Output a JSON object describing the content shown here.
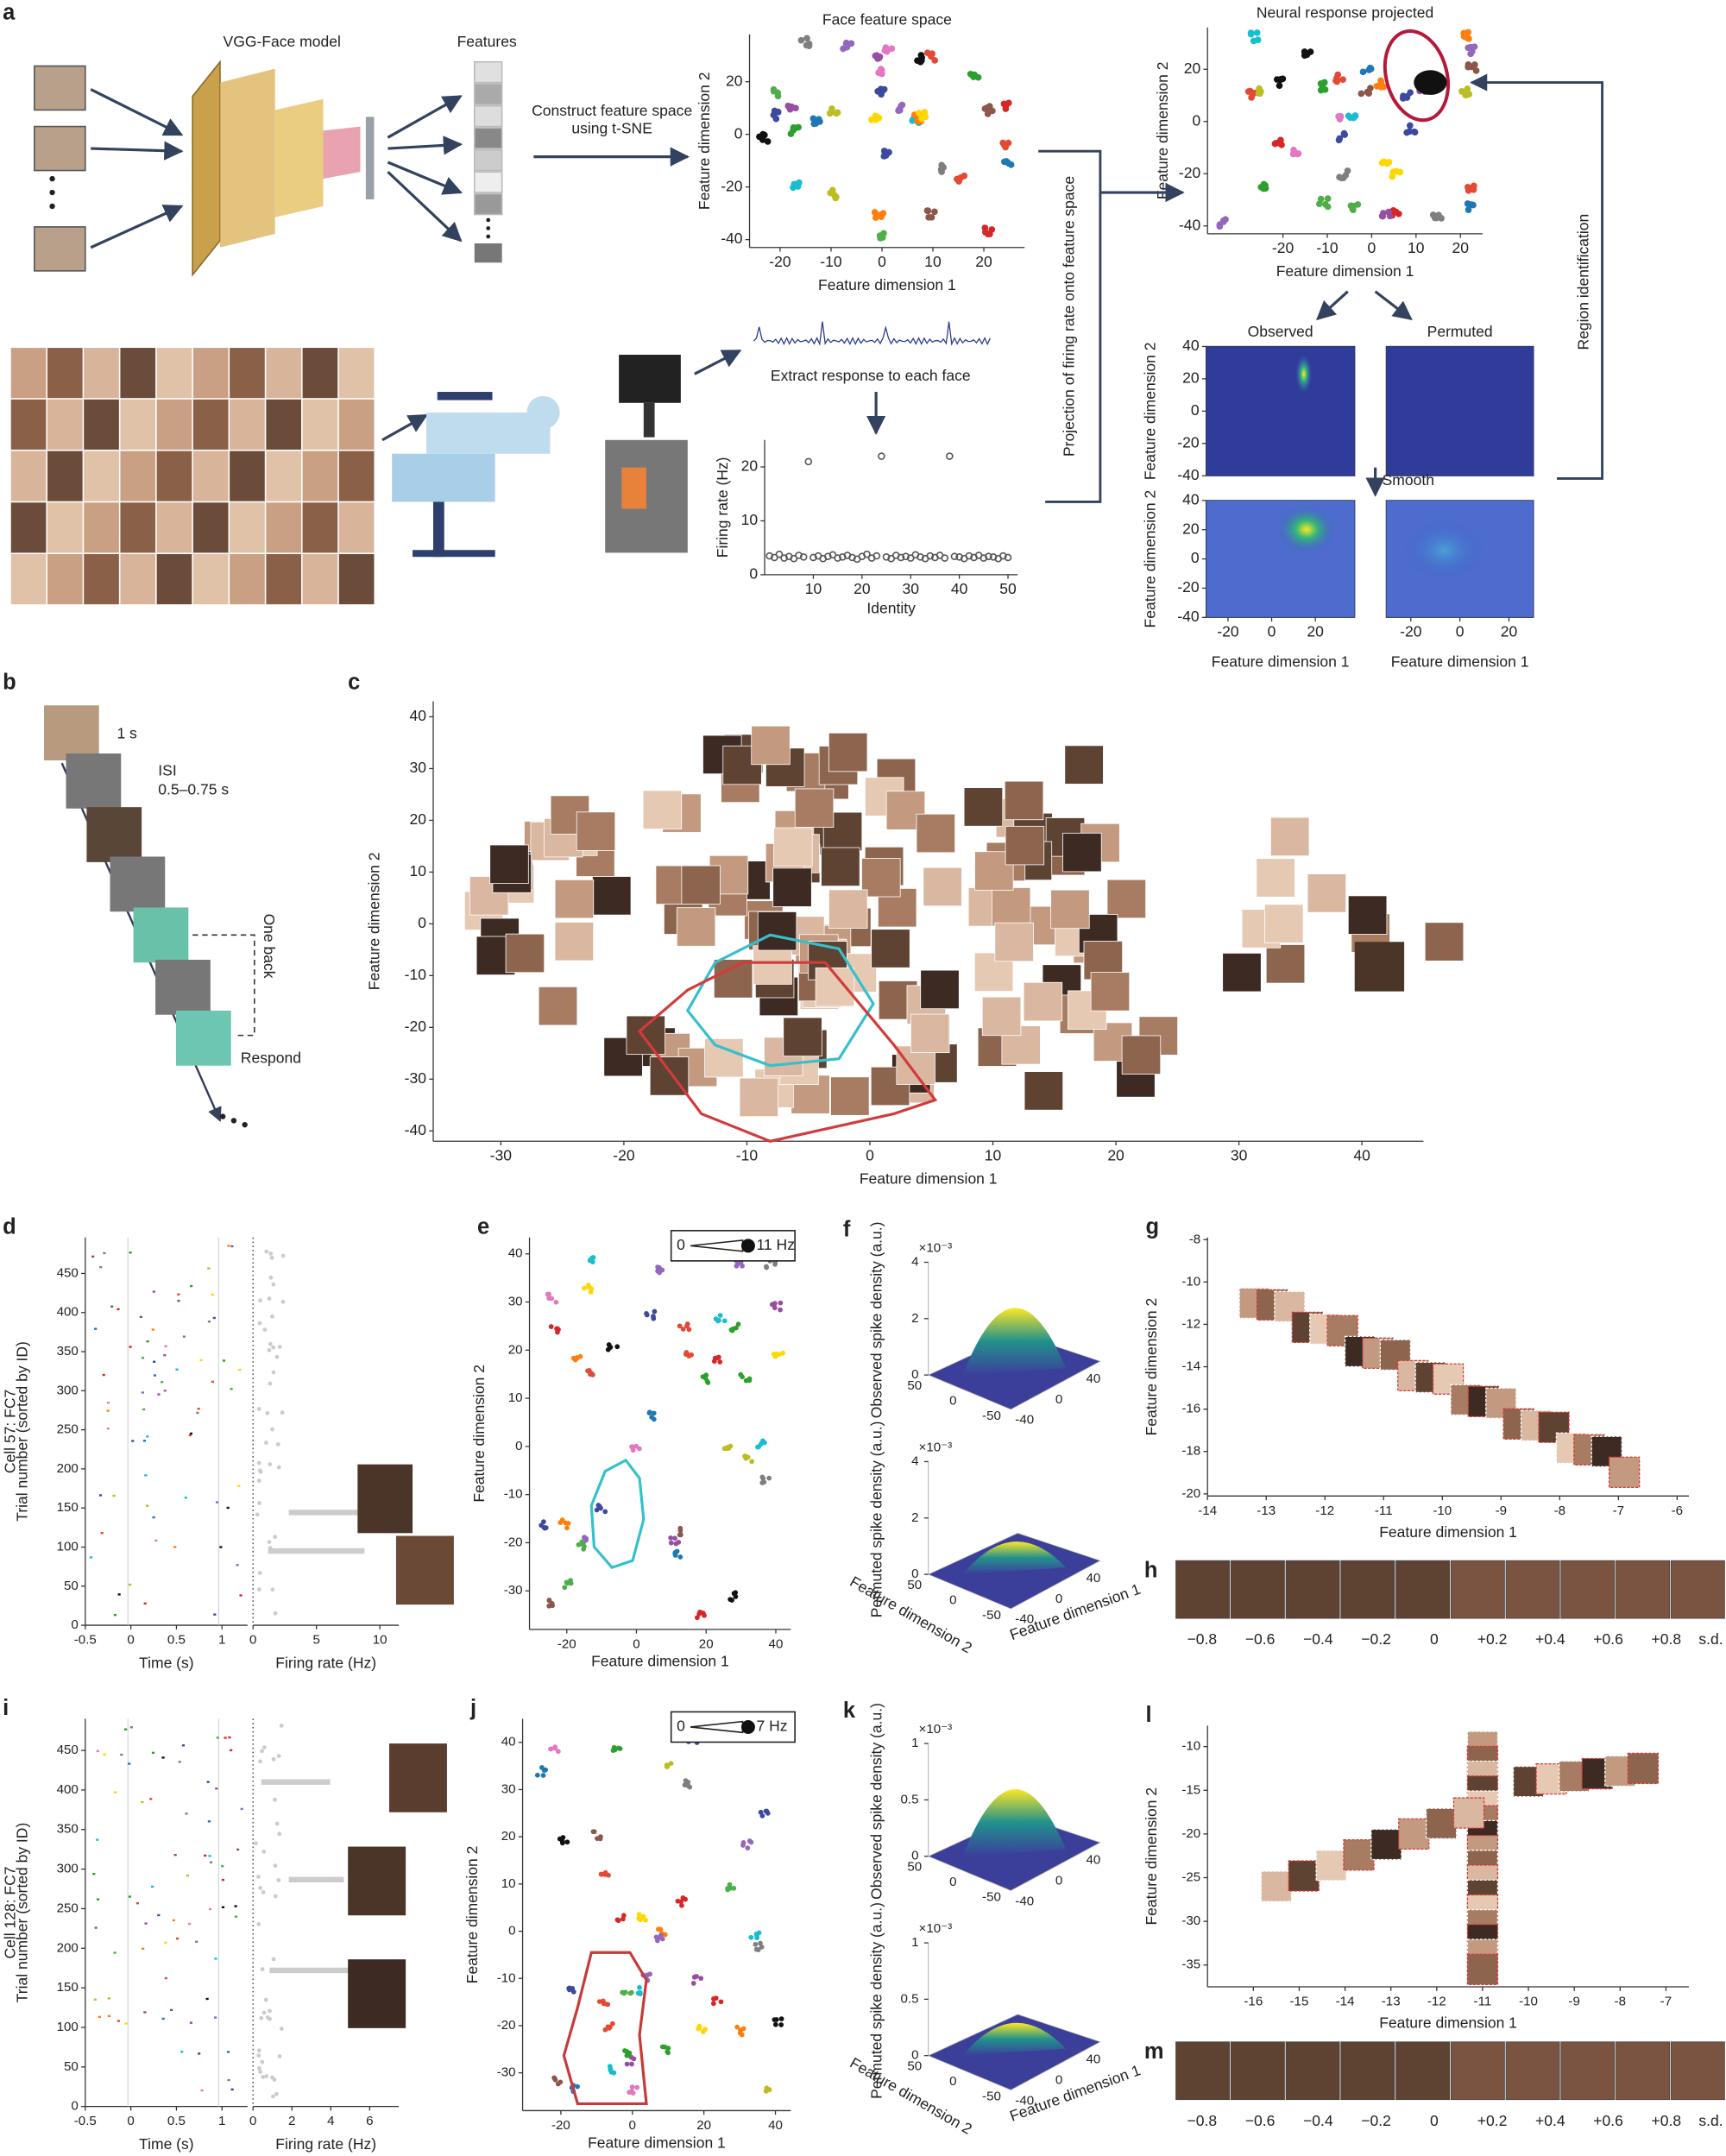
{
  "a": {
    "label": "a",
    "vgg_title": "VGG-Face model",
    "features_title": "Features",
    "construct_text": "Construct feature space using t-SNE",
    "extract_text": "Extract response to each face",
    "projection_text": "Projection of firing rate onto feature space",
    "region_text": "Region identification",
    "smooth_text": "Smooth",
    "feature_space": {
      "title": "Face feature space",
      "xlabel": "Feature dimension 1",
      "ylabel": "Feature dimension 2",
      "xlim": [
        -26,
        28
      ],
      "ylim": [
        -43,
        38
      ],
      "xticks": [
        -20,
        -10,
        0,
        10,
        20
      ],
      "yticks": [
        -40,
        -20,
        0,
        20
      ]
    },
    "neural_space": {
      "title": "Neural response projected",
      "xlabel": "Feature dimension 1",
      "ylabel": "Feature dimension 2",
      "xlim": [
        -37,
        25
      ],
      "ylim": [
        -43,
        36
      ],
      "xticks": [
        -20,
        -10,
        0,
        10,
        20
      ],
      "yticks": [
        -40,
        -20,
        0,
        20
      ]
    },
    "firing": {
      "xlabel": "Identity",
      "ylabel": "Firing rate (Hz)",
      "xlim": [
        0,
        52
      ],
      "ylim": [
        0,
        25
      ],
      "xticks": [
        10,
        20,
        30,
        40,
        50
      ],
      "yticks": [
        0,
        10,
        20
      ],
      "values": [
        3.5,
        3.2,
        3.8,
        3.1,
        3.4,
        3.0,
        3.6,
        3.3,
        21,
        3.2,
        3.5,
        3.0,
        3.4,
        3.7,
        3.1,
        3.3,
        3.6,
        3.2,
        2.9,
        3.4,
        3.8,
        3.1,
        3.5,
        22,
        3.3,
        3.0,
        3.6,
        3.2,
        3.4,
        3.1,
        3.7,
        3.3,
        3.0,
        3.5,
        3.2,
        3.6,
        3.1,
        22,
        3.4,
        3.3,
        3.0,
        3.5,
        3.2,
        3.6,
        3.1,
        3.4,
        3.3,
        3.0,
        3.5,
        3.2
      ],
      "color": "#555555"
    },
    "observed": {
      "title": "Observed",
      "ylabel": "Feature dimension 2",
      "xlim": [
        -35,
        35
      ],
      "ylim": [
        -40,
        40
      ],
      "yticks": [
        -40,
        -20,
        0,
        20,
        40
      ]
    },
    "permuted": {
      "title": "Permuted",
      "xlim": [
        -35,
        35
      ],
      "ylim": [
        -40,
        40
      ]
    },
    "observed_smooth": {
      "xlabel": "Feature dimension 1",
      "ylabel": "Feature dimension 2",
      "xlim": [
        -30,
        38
      ],
      "ylim": [
        -40,
        40
      ],
      "xticks": [
        -20,
        0,
        20
      ],
      "yticks": [
        -40,
        -20,
        0,
        20,
        40
      ]
    },
    "permuted_smooth": {
      "xlabel": "Feature dimension 1",
      "xlim": [
        -30,
        30
      ],
      "ylim": [
        -40,
        40
      ],
      "xticks": [
        -20,
        0,
        20
      ]
    }
  },
  "b": {
    "label": "b",
    "duration": "1 s",
    "isi": "ISI",
    "isi_range": "0.5–0.75 s",
    "one_back": "One back",
    "respond": "Respond"
  },
  "c": {
    "label": "c",
    "xlabel": "Feature dimension 1",
    "ylabel": "Feature dimension 2",
    "xlim": [
      -35.5,
      45
    ],
    "ylim": [
      -42,
      43
    ],
    "xticks": [
      -30,
      -20,
      -10,
      0,
      10,
      20,
      30,
      40
    ],
    "yticks": [
      -40,
      -30,
      -20,
      -10,
      0,
      10,
      20,
      30,
      40
    ]
  },
  "d": {
    "label": "d",
    "cell": "Cell 57: FC7",
    "raster": {
      "xlabel": "Time (s)",
      "ylabel": "Trial number (sorted by ID)",
      "xlim": [
        -0.5,
        1.28
      ],
      "ylim": [
        0,
        496
      ],
      "xticks": [
        -0.5,
        0,
        0.5,
        1
      ],
      "yticks": [
        0,
        50,
        100,
        150,
        200,
        250,
        300,
        350,
        400,
        450
      ]
    },
    "rate": {
      "xlabel": "Firing rate (Hz)",
      "xlim": [
        0,
        11.5
      ],
      "ylim": [
        0,
        496
      ],
      "xticks": [
        0,
        5,
        10
      ]
    }
  },
  "e": {
    "label": "e",
    "legend_min": "0",
    "legend_max": "11 Hz",
    "xlabel": "Feature dimension 1",
    "ylabel": "Feature dimension 2",
    "xlim": [
      -30.7,
      44.3
    ],
    "ylim": [
      -38,
      43.4
    ],
    "xticks": [
      -20,
      0,
      20,
      40
    ],
    "yticks": [
      -30,
      -20,
      -10,
      0,
      10,
      20,
      30,
      40
    ]
  },
  "f": {
    "label": "f",
    "observed_label": "Observed spike density (a.u.)",
    "permuted_label": "Permuted spike density (a.u.)",
    "scale": "×10⁻³",
    "zticks": [
      0,
      2,
      4
    ],
    "dim2_ticks": [
      50,
      0,
      -50
    ],
    "dim1_ticks": [
      -40,
      0,
      40
    ],
    "dim2_label": "Feature dimension 2",
    "dim1_label": "Feature dimension 1"
  },
  "g": {
    "label": "g",
    "xlabel": "Feature dimension 1",
    "ylabel": "Feature dimension 2",
    "xlim": [
      -14,
      -5.8
    ],
    "ylim": [
      -20.1,
      -7.9
    ],
    "xticks": [
      -14,
      -13,
      -12,
      -11,
      -10,
      -9,
      -8,
      -7,
      -6
    ],
    "yticks": [
      -20,
      -18,
      -16,
      -14,
      -12,
      -10,
      -8
    ]
  },
  "h": {
    "label": "h",
    "steps": [
      "−0.8",
      "−0.6",
      "−0.4",
      "−0.2",
      "0",
      "+0.2",
      "+0.4",
      "+0.6",
      "+0.8"
    ],
    "unit": "s.d."
  },
  "i": {
    "label": "i",
    "cell": "Cell 128: FC7",
    "raster": {
      "xlabel": "Time (s)",
      "ylabel": "Trial number (sorted by ID)",
      "xlim": [
        -0.5,
        1.28
      ],
      "ylim": [
        0,
        490
      ],
      "xticks": [
        -0.5,
        0,
        0.5,
        1
      ],
      "yticks": [
        0,
        50,
        100,
        150,
        200,
        250,
        300,
        350,
        400,
        450
      ]
    },
    "rate": {
      "xlabel": "Firing rate (Hz)",
      "xlim": [
        0,
        7.5
      ],
      "ylim": [
        0,
        490
      ],
      "xticks": [
        0,
        2,
        4,
        6
      ]
    }
  },
  "j": {
    "label": "j",
    "legend_min": "0",
    "legend_max": "7 Hz",
    "xlabel": "Feature dimension 1",
    "ylabel": "Feature dimension 2",
    "xlim": [
      -30.7,
      44.3
    ],
    "ylim": [
      -38,
      45
    ],
    "xticks": [
      -20,
      0,
      20,
      40
    ],
    "yticks": [
      -30,
      -20,
      -10,
      0,
      10,
      20,
      30,
      40
    ]
  },
  "k": {
    "label": "k",
    "observed_label": "Observed spike density (a.u.)",
    "permuted_label": "Permuted spike density (a.u.)",
    "scale": "×10⁻³",
    "zticks": [
      0,
      0.5,
      1
    ],
    "dim2_ticks": [
      50,
      0,
      -50
    ],
    "dim1_ticks": [
      -40,
      0,
      40
    ],
    "dim2_label": "Feature dimension 2",
    "dim1_label": "Feature dimension 1"
  },
  "l": {
    "label": "l",
    "xlabel": "Feature dimension 1",
    "ylabel": "Feature dimension 2",
    "xlim": [
      -17,
      -6.5
    ],
    "ylim": [
      -37.5,
      -7.6
    ],
    "xticks": [
      -16,
      -15,
      -14,
      -13,
      -12,
      -11,
      -10,
      -9,
      -8,
      -7
    ],
    "yticks": [
      -35,
      -30,
      -25,
      -20,
      -15,
      -10
    ]
  },
  "m": {
    "label": "m",
    "steps": [
      "−0.8",
      "−0.6",
      "−0.4",
      "−0.2",
      "0",
      "+0.2",
      "+0.4",
      "+0.6",
      "+0.8"
    ],
    "unit": "s.d."
  }
}
